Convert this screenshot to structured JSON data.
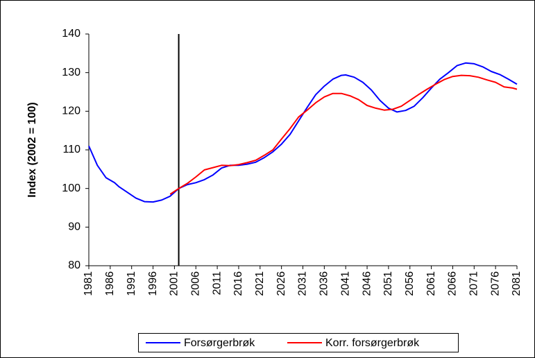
{
  "chart_data": {
    "type": "line",
    "ylabel": "Index (2002 = 100)",
    "xlim": [
      1981,
      2081
    ],
    "xticks": [
      1981,
      1986,
      1991,
      1996,
      2001,
      2006,
      2011,
      2016,
      2021,
      2026,
      2031,
      2036,
      2041,
      2046,
      2051,
      2056,
      2061,
      2066,
      2071,
      2076,
      2081
    ],
    "ylim": [
      80,
      140
    ],
    "yticks": [
      80,
      90,
      100,
      110,
      120,
      130,
      140
    ],
    "grid": false,
    "vline": 2002,
    "legend": "bottom",
    "series": [
      {
        "name": "Forsørgerbrøk",
        "color": "#0000ff",
        "x": [
          1981,
          1983,
          1985,
          1987,
          1988,
          1990,
          1992,
          1994,
          1996,
          1998,
          2000,
          2002,
          2004,
          2006,
          2008,
          2010,
          2012,
          2014,
          2016,
          2018,
          2020,
          2022,
          2024,
          2026,
          2028,
          2030,
          2032,
          2034,
          2036,
          2038,
          2040,
          2041,
          2043,
          2045,
          2047,
          2049,
          2051,
          2053,
          2055,
          2057,
          2059,
          2061,
          2063,
          2065,
          2067,
          2069,
          2071,
          2073,
          2075,
          2077,
          2079,
          2081
        ],
        "values": [
          111,
          106,
          102.8,
          101.5,
          100.5,
          99,
          97.5,
          96.6,
          96.5,
          97,
          98,
          100,
          101,
          101.5,
          102.3,
          103.5,
          105.3,
          106,
          106,
          106.3,
          106.8,
          108,
          109.5,
          111.5,
          114,
          117.5,
          121,
          124.3,
          126.5,
          128.3,
          129.3,
          129.4,
          128.8,
          127.5,
          125.5,
          122.8,
          120.8,
          119.8,
          120.2,
          121.3,
          123.5,
          126,
          128.3,
          130,
          131.8,
          132.5,
          132.3,
          131.5,
          130.3,
          129.5,
          128.3,
          127
        ]
      },
      {
        "name": "Korr. forsørgerbrøk",
        "color": "#ff0000",
        "x": [
          2000,
          2002,
          2004,
          2006,
          2008,
          2010,
          2012,
          2014,
          2016,
          2018,
          2020,
          2022,
          2024,
          2026,
          2028,
          2030,
          2032,
          2034,
          2036,
          2038,
          2040,
          2042,
          2044,
          2046,
          2048,
          2050,
          2052,
          2054,
          2056,
          2058,
          2060,
          2062,
          2064,
          2066,
          2068,
          2070,
          2072,
          2074,
          2076,
          2078,
          2080,
          2081
        ],
        "values": [
          98.5,
          100,
          101.3,
          103,
          104.8,
          105.4,
          106,
          105.9,
          106.2,
          106.7,
          107.3,
          108.6,
          110,
          112.8,
          115.5,
          118.5,
          120.3,
          122.2,
          123.7,
          124.6,
          124.6,
          124,
          123,
          121.5,
          120.8,
          120.3,
          120.5,
          121.3,
          122.8,
          124.3,
          125.7,
          127,
          128.2,
          129,
          129.3,
          129.2,
          128.8,
          128.1,
          127.5,
          126.3,
          126,
          125.7
        ]
      }
    ]
  }
}
